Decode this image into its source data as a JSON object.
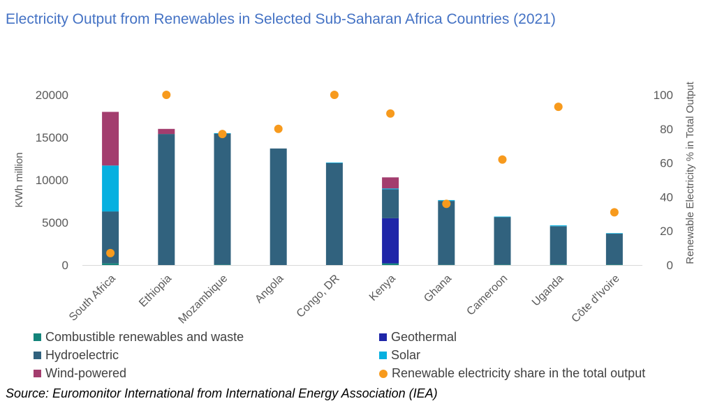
{
  "title": "Electricity Output from Renewables in Selected Sub-Saharan Africa Countries (2021)",
  "source": "Source: Euromonitor International from International Energy Association (IEA)",
  "colors": {
    "combustible": "#13847A",
    "geothermal": "#1F26A8",
    "hydroelectric": "#31627E",
    "solar": "#06B0E0",
    "wind": "#A33D6E",
    "share": "#F79A1D"
  },
  "chart_data": {
    "type": "bar",
    "stacked": true,
    "categories": [
      "South Africa",
      "Ethiopia",
      "Mozambique",
      "Angola",
      "Congo, DR",
      "Kenya",
      "Ghana",
      "Cameroon",
      "Uganda",
      "Côte d'Ivoire"
    ],
    "series": [
      {
        "name": "Combustible renewables and waste",
        "key": "combustible",
        "values": [
          200,
          0,
          50,
          0,
          0,
          200,
          30,
          50,
          60,
          50
        ]
      },
      {
        "name": "Geothermal",
        "key": "geothermal",
        "values": [
          0,
          0,
          0,
          0,
          0,
          5300,
          0,
          0,
          0,
          0
        ]
      },
      {
        "name": "Hydroelectric",
        "key": "hydroelectric",
        "values": [
          6100,
          15400,
          15400,
          13700,
          12000,
          3400,
          7500,
          5600,
          4500,
          3650
        ]
      },
      {
        "name": "Solar",
        "key": "solar",
        "values": [
          5400,
          0,
          50,
          0,
          50,
          100,
          100,
          50,
          100,
          50
        ]
      },
      {
        "name": "Wind-powered",
        "key": "wind",
        "values": [
          6300,
          600,
          0,
          0,
          0,
          1300,
          0,
          0,
          0,
          0
        ]
      }
    ],
    "line_series": {
      "name": "Renewable electricity share in the total output",
      "key": "share",
      "axis": "right",
      "type": "scatter",
      "values": [
        7,
        100,
        77,
        80,
        100,
        89,
        36,
        62,
        93,
        31
      ]
    },
    "ylabel": "KWh million",
    "ylabel_right": "Renewable Electricity % in Total Output",
    "ylim": [
      0,
      20000
    ],
    "ylim_right": [
      0,
      100
    ],
    "yticks": [
      "0",
      "5000",
      "10000",
      "15000",
      "20000"
    ],
    "yticks_right": [
      "0",
      "20",
      "40",
      "60",
      "80",
      "100"
    ],
    "legend_position": "bottom"
  },
  "legend": [
    {
      "label": "Combustible renewables and waste",
      "key": "combustible",
      "kind": "square"
    },
    {
      "label": "Geothermal",
      "key": "geothermal",
      "kind": "square"
    },
    {
      "label": "Hydroelectric",
      "key": "hydroelectric",
      "kind": "square"
    },
    {
      "label": "Solar",
      "key": "solar",
      "kind": "square"
    },
    {
      "label": "Wind-powered",
      "key": "wind",
      "kind": "square"
    },
    {
      "label": "Renewable electricity share in the total output",
      "key": "share",
      "kind": "dot"
    }
  ]
}
